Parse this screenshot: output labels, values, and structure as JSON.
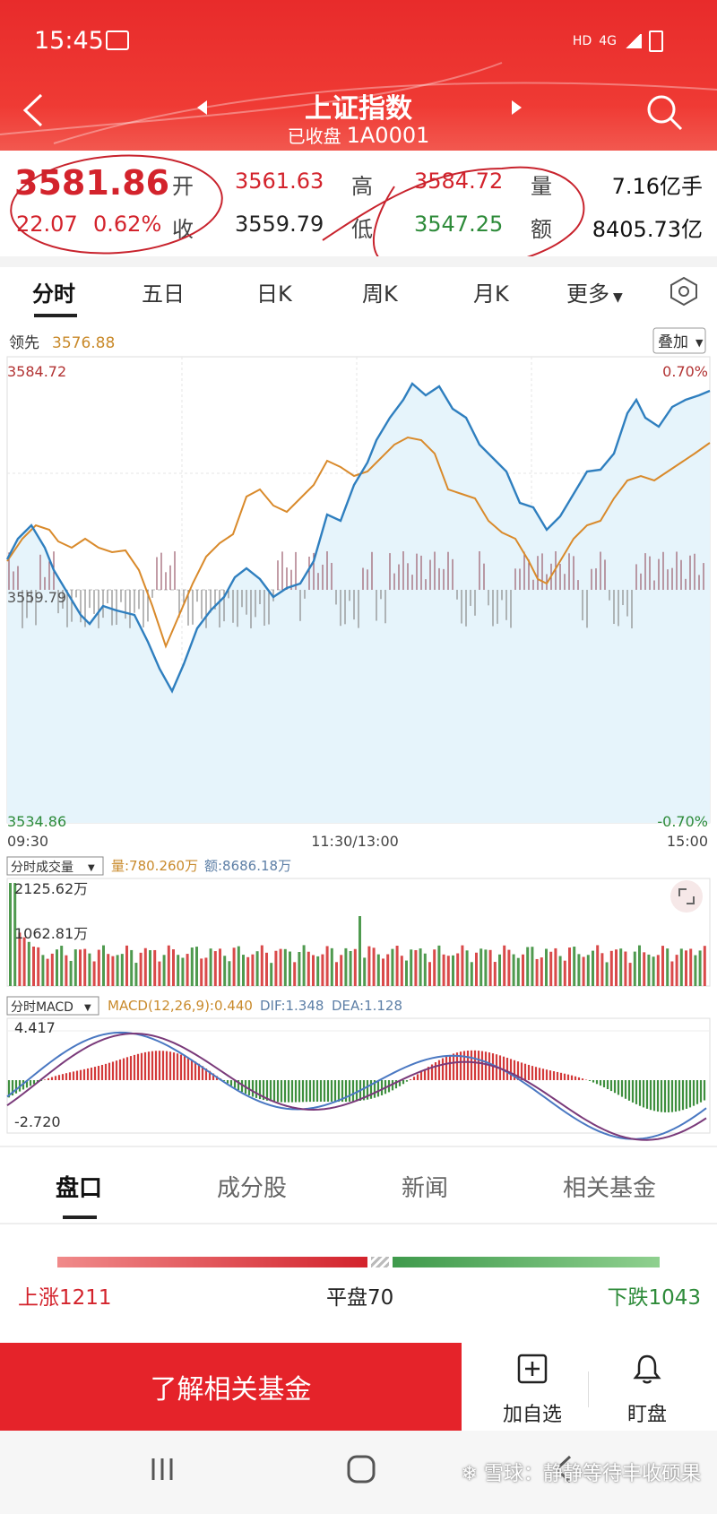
{
  "status_bar": {
    "time": "15:45",
    "network": "4G",
    "hd": "HD"
  },
  "header": {
    "title": "上证指数",
    "status": "已收盘",
    "code": "1A0001"
  },
  "quote": {
    "price": "3581.86",
    "change": "22.07",
    "change_pct": "0.62%",
    "open_label": "开",
    "open": "3561.63",
    "close_label": "收",
    "prev_close": "3559.79",
    "high_label": "高",
    "high": "3584.72",
    "low_label": "低",
    "low": "3547.25",
    "vol_label": "量",
    "volume": "7.16亿手",
    "amt_label": "额",
    "amount": "8405.73亿"
  },
  "period_tabs": [
    "分时",
    "五日",
    "日K",
    "周K",
    "月K",
    "更多"
  ],
  "chart": {
    "leader_label": "领先",
    "leader_value": "3576.88",
    "overlay_button": "叠加",
    "y_top": "3584.72",
    "y_mid": "3559.79",
    "y_bottom": "3534.86",
    "pct_top": "0.70%",
    "pct_bottom": "-0.70%",
    "time_start": "09:30",
    "time_mid": "11:30/13:00",
    "time_end": "15:00"
  },
  "volume_panel": {
    "selector": "分时成交量",
    "vol_text": "量:780.260万",
    "amt_text": "额:8686.18万",
    "y_top": "2125.62万",
    "y_mid": "1062.81万"
  },
  "macd_panel": {
    "selector": "分时MACD",
    "macd_text": "MACD(12,26,9):0.440",
    "dif_text": "DIF:1.348",
    "dea_text": "DEA:1.128",
    "y_top": "4.417",
    "y_bottom": "-2.720"
  },
  "bottom_tabs": [
    "盘口",
    "成分股",
    "新闻",
    "相关基金"
  ],
  "breadth": {
    "up": "上涨1211",
    "flat": "平盘70",
    "down": "下跌1043",
    "up_count": 1211,
    "flat_count": 70,
    "down_count": 1043
  },
  "footer": {
    "cta": "了解相关基金",
    "watchlist": "加自选",
    "monitor": "盯盘"
  },
  "watermark": "雪球：静静等待丰收硕果",
  "colors": {
    "brand_red": "#e5232a",
    "up_red": "#d3232c",
    "down_green": "#2e8b3a",
    "index_line": "#2f7fbf",
    "avg_line": "#d98a2b"
  }
}
